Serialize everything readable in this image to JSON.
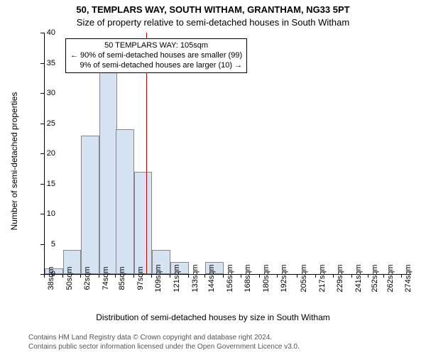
{
  "title_line1": "50, TEMPLARS WAY, SOUTH WITHAM, GRANTHAM, NG33 5PT",
  "title_line2": "Size of property relative to semi-detached houses in South Witham",
  "ylabel": "Number of semi-detached properties",
  "xlabel": "Distribution of semi-detached houses by size in South Witham",
  "attribution_line1": "Contains HM Land Registry data © Crown copyright and database right 2024.",
  "attribution_line2": "Contains public sector information licensed under the Open Government Licence v3.0.",
  "chart": {
    "type": "histogram",
    "bar_fill": "#d6e3f3",
    "bar_border": "#888888",
    "marker_line_color": "#cc0000",
    "background_color": "#ffffff",
    "axis_color": "#000000",
    "font_family": "Arial",
    "ylim": [
      0,
      40
    ],
    "ytick_step": 5,
    "xlim_sqm": [
      38,
      280
    ],
    "xtick_sqm": [
      38,
      50,
      62,
      74,
      85,
      97,
      109,
      121,
      133,
      144,
      156,
      168,
      180,
      192,
      205,
      217,
      229,
      241,
      252,
      262,
      274
    ],
    "xtick_suffix": "sqm",
    "bin_width_sqm": 12,
    "bins_start_sqm": [
      38,
      50,
      62,
      74,
      85,
      97,
      109,
      121,
      133,
      144
    ],
    "counts": [
      1,
      4,
      23,
      34,
      24,
      17,
      4,
      2,
      0,
      2
    ],
    "marker_x_sqm": 105,
    "annotation": {
      "lines": [
        "50 TEMPLARS WAY: 105sqm",
        "← 90% of semi-detached houses are smaller (99)",
        "9% of semi-detached houses are larger (10) →"
      ]
    }
  }
}
